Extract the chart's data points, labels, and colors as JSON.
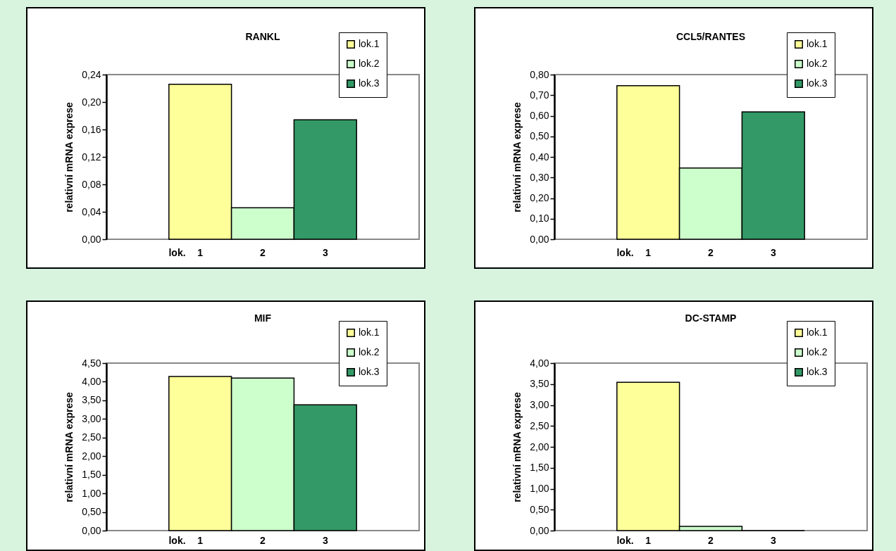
{
  "chart_data": [
    {
      "type": "bar",
      "title": "RANKL",
      "ylabel": "relativní mRNA exprese",
      "xlabel": "lok.",
      "categories": [
        "1",
        "2",
        "3"
      ],
      "legend": "top right",
      "ylim": [
        0,
        0.24
      ],
      "yticks": [
        {
          "value": 0,
          "label": "0,00"
        },
        {
          "value": 0.04,
          "label": "0,04"
        },
        {
          "value": 0.08,
          "label": "0,08"
        },
        {
          "value": 0.12,
          "label": "0,12"
        },
        {
          "value": 0.16,
          "label": "0,16"
        },
        {
          "value": 0.2,
          "label": "0,20"
        },
        {
          "value": 0.24,
          "label": "0,24"
        }
      ],
      "series": [
        {
          "name": "lok.1",
          "color": "#ffff99",
          "values": [
            0.226,
            null,
            null
          ]
        },
        {
          "name": "lok.2",
          "color": "#ccffcc",
          "values": [
            null,
            0.046,
            null
          ]
        },
        {
          "name": "lok.3",
          "color": "#339966",
          "values": [
            null,
            null,
            0.174
          ]
        }
      ]
    },
    {
      "type": "bar",
      "title": "CCL5/RANTES",
      "ylabel": "relativní mRNA exprese",
      "xlabel": "lok.",
      "categories": [
        "1",
        "2",
        "3"
      ],
      "legend": "top right",
      "ylim": [
        0,
        0.8
      ],
      "yticks": [
        {
          "value": 0,
          "label": "0,00"
        },
        {
          "value": 0.1,
          "label": "0,10"
        },
        {
          "value": 0.2,
          "label": "0,20"
        },
        {
          "value": 0.3,
          "label": "0,30"
        },
        {
          "value": 0.4,
          "label": "0,40"
        },
        {
          "value": 0.5,
          "label": "0,50"
        },
        {
          "value": 0.6,
          "label": "0,60"
        },
        {
          "value": 0.7,
          "label": "0,70"
        },
        {
          "value": 0.8,
          "label": "0,80"
        }
      ],
      "series": [
        {
          "name": "lok.1",
          "color": "#ffff99",
          "values": [
            0.746,
            null,
            null
          ]
        },
        {
          "name": "lok.2",
          "color": "#ccffcc",
          "values": [
            null,
            0.346,
            null
          ]
        },
        {
          "name": "lok.3",
          "color": "#339966",
          "values": [
            null,
            null,
            0.619
          ]
        }
      ]
    },
    {
      "type": "bar",
      "title": "MIF",
      "ylabel": "relativní mRNA exprese",
      "xlabel": "lok.",
      "categories": [
        "1",
        "2",
        "3"
      ],
      "legend": "top right",
      "ylim": [
        0,
        4.5
      ],
      "yticks": [
        {
          "value": 0,
          "label": "0,00"
        },
        {
          "value": 0.5,
          "label": "0,50"
        },
        {
          "value": 1,
          "label": "1,00"
        },
        {
          "value": 1.5,
          "label": "1,50"
        },
        {
          "value": 2,
          "label": "2,00"
        },
        {
          "value": 2.5,
          "label": "2,50"
        },
        {
          "value": 3,
          "label": "3,00"
        },
        {
          "value": 3.5,
          "label": "3,50"
        },
        {
          "value": 4,
          "label": "4,00"
        },
        {
          "value": 4.5,
          "label": "4,50"
        }
      ],
      "series": [
        {
          "name": "lok.1",
          "color": "#ffff99",
          "values": [
            4.14,
            null,
            null
          ]
        },
        {
          "name": "lok.2",
          "color": "#ccffcc",
          "values": [
            null,
            4.1,
            null
          ]
        },
        {
          "name": "lok.3",
          "color": "#339966",
          "values": [
            null,
            null,
            3.38
          ]
        }
      ]
    },
    {
      "type": "bar",
      "title": "DC-STAMP",
      "ylabel": "relativní mRNA exprese",
      "xlabel": "lok.",
      "categories": [
        "1",
        "2",
        "3"
      ],
      "legend": "top right",
      "ylim": [
        0,
        4
      ],
      "yticks": [
        {
          "value": 0,
          "label": "0,00"
        },
        {
          "value": 0.5,
          "label": "0,50"
        },
        {
          "value": 1,
          "label": "1,00"
        },
        {
          "value": 1.5,
          "label": "1,50"
        },
        {
          "value": 2,
          "label": "2,00"
        },
        {
          "value": 2.5,
          "label": "2,50"
        },
        {
          "value": 3,
          "label": "3,00"
        },
        {
          "value": 3.5,
          "label": "3,50"
        },
        {
          "value": 4,
          "label": "4,00"
        }
      ],
      "series": [
        {
          "name": "lok.1",
          "color": "#ffff99",
          "values": [
            3.54,
            null,
            null
          ]
        },
        {
          "name": "lok.2",
          "color": "#ccffcc",
          "values": [
            null,
            0.1,
            null
          ]
        },
        {
          "name": "lok.3",
          "color": "#339966",
          "values": [
            null,
            null,
            0
          ]
        }
      ]
    }
  ]
}
